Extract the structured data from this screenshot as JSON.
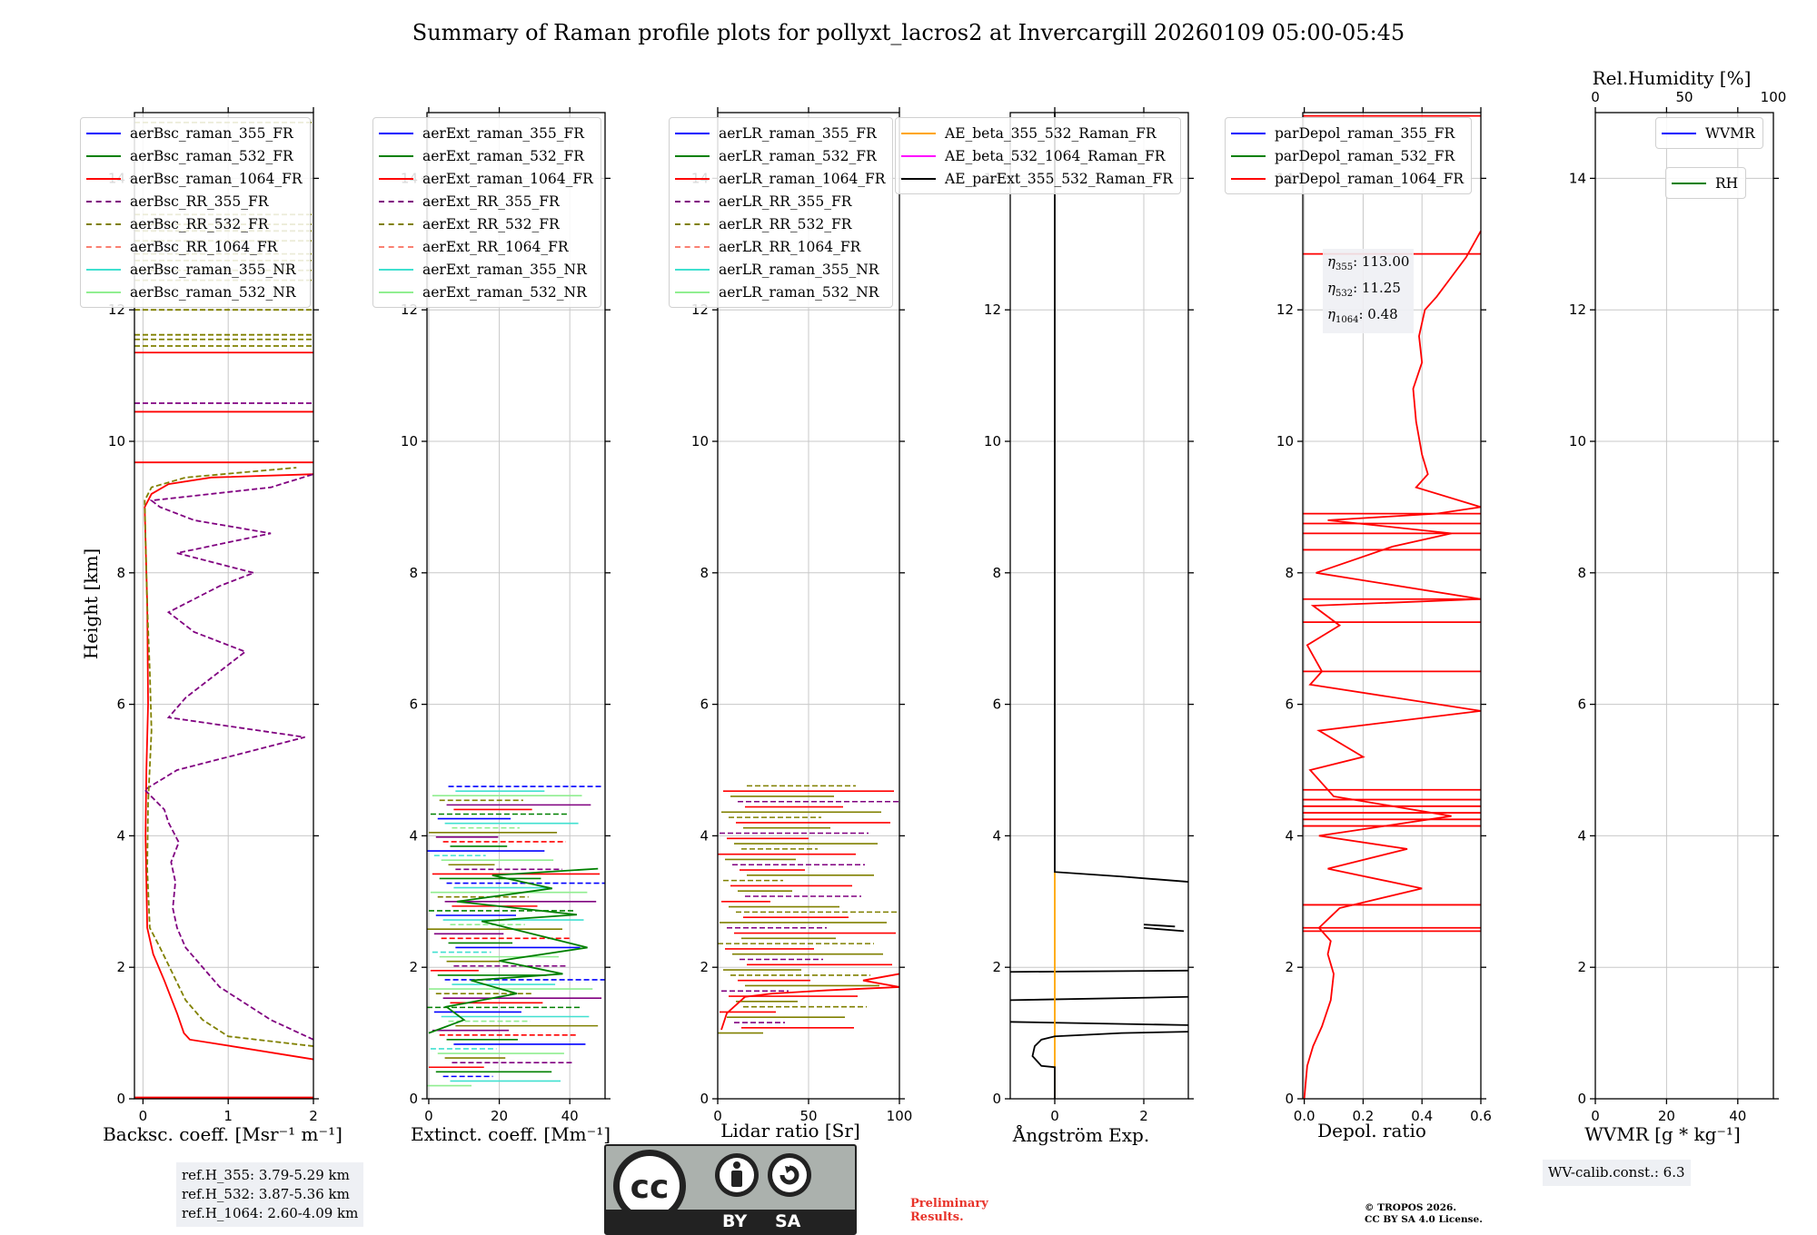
{
  "title": "Summary of Raman profile plots for pollyxt_lacros2 at Invercargill 20260109 05:00-05:45",
  "ylabel": "Height [km]",
  "colors": {
    "blue": "#0000ff",
    "green": "#008000",
    "red": "#ff0000",
    "purple": "#800080",
    "olive": "#808000",
    "salmon": "#fa8072",
    "cyan": "#40e0d0",
    "lightgreen": "#90ee90",
    "orange": "#ffa500",
    "magenta": "#ff00ff",
    "black": "#000000",
    "grid": "#c8c8c8"
  },
  "chart_data": [
    {
      "id": "bsc",
      "type": "line",
      "xlabel": "Backsc. coeff. [Msr⁻¹ m⁻¹]",
      "xlim": [
        -0.1,
        2
      ],
      "ylim": [
        0,
        15
      ],
      "xticks": [
        0,
        1,
        2
      ],
      "xtick_labels": [
        "0",
        "1",
        "2"
      ],
      "yticks": [
        0,
        2,
        4,
        6,
        8,
        10,
        12,
        14
      ],
      "legend": [
        {
          "label": "aerBsc_raman_355_FR",
          "color": "blue",
          "dash": false
        },
        {
          "label": "aerBsc_raman_532_FR",
          "color": "green",
          "dash": false
        },
        {
          "label": "aerBsc_raman_1064_FR",
          "color": "red",
          "dash": false
        },
        {
          "label": "aerBsc_RR_355_FR",
          "color": "purple",
          "dash": true
        },
        {
          "label": "aerBsc_RR_532_FR",
          "color": "olive",
          "dash": true
        },
        {
          "label": "aerBsc_RR_1064_FR",
          "color": "salmon",
          "dash": true
        },
        {
          "label": "aerBsc_raman_355_NR",
          "color": "cyan",
          "dash": false
        },
        {
          "label": "aerBsc_raman_532_NR",
          "color": "lightgreen",
          "dash": false
        }
      ],
      "series": [
        {
          "name": "aerBsc_raman_1064_FR",
          "color": "red",
          "dash": false,
          "x": [
            2.0,
            0.8,
            0.55,
            0.48,
            0.4,
            0.25,
            0.12,
            0.05,
            0.03,
            0.04,
            0.06,
            0.05,
            0.03,
            0.02,
            0.1,
            0.3,
            0.8,
            2.0
          ],
          "y": [
            0.6,
            0.85,
            0.9,
            1.0,
            1.3,
            1.8,
            2.2,
            2.6,
            4.0,
            5.0,
            6.0,
            7.5,
            8.5,
            9.0,
            9.2,
            9.35,
            9.45,
            9.5
          ]
        },
        {
          "name": "aerBsc_RR_355_FR",
          "color": "purple",
          "dash": true,
          "x": [
            2.0,
            1.5,
            0.9,
            0.5,
            0.4,
            0.35,
            0.38,
            0.33,
            0.42,
            0.3,
            0.25,
            0.02,
            0.4,
            1.9,
            0.3,
            0.5,
            0.8,
            1.2,
            0.6,
            0.3,
            0.9,
            1.3,
            0.4,
            1.5,
            0.6,
            0.2,
            0.1,
            1.5,
            2.0
          ],
          "y": [
            0.9,
            1.2,
            1.7,
            2.3,
            2.6,
            2.9,
            3.3,
            3.6,
            3.9,
            4.2,
            4.4,
            4.7,
            5.0,
            5.5,
            5.8,
            6.1,
            6.4,
            6.8,
            7.1,
            7.4,
            7.8,
            8.0,
            8.3,
            8.6,
            8.8,
            9.0,
            9.1,
            9.3,
            9.5
          ]
        },
        {
          "name": "aerBsc_RR_532_FR",
          "color": "olive",
          "dash": true,
          "x": [
            2.0,
            1.0,
            0.7,
            0.5,
            0.35,
            0.2,
            0.08,
            0.05,
            0.06,
            0.1,
            0.08,
            0.05,
            0.03,
            0.02,
            0.1,
            0.5,
            1.8
          ],
          "y": [
            0.8,
            0.95,
            1.2,
            1.5,
            1.9,
            2.3,
            2.6,
            3.5,
            4.5,
            5.6,
            6.5,
            7.5,
            8.5,
            9.1,
            9.3,
            9.45,
            9.6
          ]
        },
        {
          "name": "aerBsc_raman_355_NR",
          "color": "cyan",
          "dash": false,
          "x": [],
          "y": []
        }
      ],
      "hlines": [
        {
          "y": 0.02,
          "color": "red",
          "dash": false
        },
        {
          "y": 9.68,
          "color": "red",
          "dash": false
        },
        {
          "y": 10.45,
          "color": "red",
          "dash": false
        },
        {
          "y": 10.58,
          "color": "purple",
          "dash": true
        },
        {
          "y": 11.35,
          "color": "red",
          "dash": false
        },
        {
          "y": 11.45,
          "color": "olive",
          "dash": true
        },
        {
          "y": 11.55,
          "color": "olive",
          "dash": true
        },
        {
          "y": 11.62,
          "color": "olive",
          "dash": true
        },
        {
          "y": 12.0,
          "color": "olive",
          "dash": true
        },
        {
          "y": 12.45,
          "color": "olive",
          "dash": true
        },
        {
          "y": 12.6,
          "color": "olive",
          "dash": true
        },
        {
          "y": 12.75,
          "color": "olive",
          "dash": true
        },
        {
          "y": 12.85,
          "color": "olive",
          "dash": true
        },
        {
          "y": 13.05,
          "color": "olive",
          "dash": true
        },
        {
          "y": 13.2,
          "color": "olive",
          "dash": true
        },
        {
          "y": 13.3,
          "color": "olive",
          "dash": true
        },
        {
          "y": 13.45,
          "color": "olive",
          "dash": true
        },
        {
          "y": 14.85,
          "color": "olive",
          "dash": true
        }
      ]
    },
    {
      "id": "ext",
      "type": "line",
      "xlabel": "Extinct. coeff. [Mm⁻¹]",
      "xlim": [
        -0.5,
        50
      ],
      "ylim": [
        0,
        15
      ],
      "xticks": [
        0,
        20,
        40
      ],
      "xtick_labels": [
        "0",
        "20",
        "40"
      ],
      "yticks": [
        0,
        2,
        4,
        6,
        8,
        10,
        12,
        14
      ],
      "legend": [
        {
          "label": "aerExt_raman_355_FR",
          "color": "blue",
          "dash": false
        },
        {
          "label": "aerExt_raman_532_FR",
          "color": "green",
          "dash": false
        },
        {
          "label": "aerExt_raman_1064_FR",
          "color": "red",
          "dash": false
        },
        {
          "label": "aerExt_RR_355_FR",
          "color": "purple",
          "dash": true
        },
        {
          "label": "aerExt_RR_532_FR",
          "color": "olive",
          "dash": true
        },
        {
          "label": "aerExt_RR_1064_FR",
          "color": "salmon",
          "dash": true
        },
        {
          "label": "aerExt_raman_355_NR",
          "color": "cyan",
          "dash": false
        },
        {
          "label": "aerExt_raman_532_NR",
          "color": "lightgreen",
          "dash": false
        }
      ],
      "series": [
        {
          "name": "aerExt_raman_532_FR",
          "color": "green",
          "dash": false,
          "x": [
            0,
            10,
            5,
            25,
            12,
            38,
            20,
            45,
            30,
            15,
            42,
            8,
            35,
            18,
            48
          ],
          "y": [
            1.0,
            1.2,
            1.4,
            1.6,
            1.8,
            1.9,
            2.1,
            2.3,
            2.5,
            2.7,
            2.8,
            3.0,
            3.2,
            3.4,
            3.5
          ]
        }
      ],
      "hband": {
        "y_min": 0.2,
        "y_max": 4.8,
        "step": 0.07,
        "colors": [
          "lightgreen",
          "cyan",
          "blue",
          "green",
          "red",
          "purple",
          "olive"
        ]
      }
    },
    {
      "id": "lr",
      "type": "line",
      "xlabel": "Lidar ratio [Sr]",
      "xlim": [
        0,
        100
      ],
      "ylim": [
        0,
        15
      ],
      "xticks": [
        0,
        50,
        100
      ],
      "xtick_labels": [
        "0",
        "50",
        "100"
      ],
      "yticks": [
        0,
        2,
        4,
        6,
        8,
        10,
        12,
        14
      ],
      "legend": [
        {
          "label": "aerLR_raman_355_FR",
          "color": "blue",
          "dash": false
        },
        {
          "label": "aerLR_raman_532_FR",
          "color": "green",
          "dash": false
        },
        {
          "label": "aerLR_raman_1064_FR",
          "color": "red",
          "dash": false
        },
        {
          "label": "aerLR_RR_355_FR",
          "color": "purple",
          "dash": true
        },
        {
          "label": "aerLR_RR_532_FR",
          "color": "olive",
          "dash": true
        },
        {
          "label": "aerLR_RR_1064_FR",
          "color": "salmon",
          "dash": true
        },
        {
          "label": "aerLR_raman_355_NR",
          "color": "cyan",
          "dash": false
        },
        {
          "label": "aerLR_raman_532_NR",
          "color": "lightgreen",
          "dash": false
        }
      ],
      "series": [
        {
          "name": "aerLR_raman_1064_FR",
          "color": "red",
          "dash": false,
          "x": [
            2,
            5,
            15,
            30,
            60,
            100,
            80,
            100
          ],
          "y": [
            1.05,
            1.3,
            1.55,
            1.6,
            1.65,
            1.7,
            1.8,
            1.9
          ]
        }
      ],
      "hband": {
        "y_min": 1.0,
        "y_max": 4.8,
        "step": 0.08,
        "colors": [
          "olive",
          "red",
          "purple",
          "olive",
          "red",
          "olive"
        ]
      }
    },
    {
      "id": "ae",
      "type": "line",
      "xlabel": "Ångström Exp.",
      "xlim": [
        -1,
        3
      ],
      "ylim": [
        0,
        15
      ],
      "xticks": [
        0,
        2
      ],
      "xtick_labels": [
        "0",
        "2"
      ],
      "yticks": [
        0,
        2,
        4,
        6,
        8,
        10,
        12,
        14
      ],
      "legend": [
        {
          "label": "AE_beta_355_532_Raman_FR",
          "color": "orange",
          "dash": false
        },
        {
          "label": "AE_beta_532_1064_Raman_FR",
          "color": "magenta",
          "dash": false
        },
        {
          "label": "AE_parExt_355_532_Raman_FR",
          "color": "black",
          "dash": false
        }
      ],
      "series": [
        {
          "name": "AE_beta_355_532_Raman_FR",
          "color": "orange",
          "dash": false,
          "x": [
            0,
            0
          ],
          "y": [
            0,
            3.45
          ]
        },
        {
          "name": "AE_parExt_355_532_Raman_FR",
          "color": "black",
          "dash": false,
          "x": [
            0,
            0,
            -0.3,
            -0.5,
            -0.45,
            -0.3,
            0,
            1.5,
            3.0
          ],
          "y": [
            0,
            0.48,
            0.5,
            0.65,
            0.8,
            0.9,
            0.95,
            1.0,
            1.02
          ]
        },
        {
          "name": "AE_parExt_355_532_Raman_FR_upper",
          "color": "black",
          "dash": false,
          "x": [
            0,
            0,
            1.5,
            3.0
          ],
          "y": [
            15,
            3.45,
            3.38,
            3.3
          ]
        }
      ],
      "segments": [
        {
          "x1": -1,
          "y1": 1.17,
          "x2": 3,
          "y2": 1.12
        },
        {
          "x1": -1,
          "y1": 1.5,
          "x2": 3,
          "y2": 1.55
        },
        {
          "x1": -1,
          "y1": 1.93,
          "x2": 3,
          "y2": 1.95
        },
        {
          "x1": 2.0,
          "y1": 2.6,
          "x2": 2.9,
          "y2": 2.55
        },
        {
          "x1": 2.0,
          "y1": 2.65,
          "x2": 2.7,
          "y2": 2.62
        }
      ]
    },
    {
      "id": "depol",
      "type": "line",
      "xlabel": "Depol. ratio",
      "xlim": [
        -0.005,
        0.6
      ],
      "ylim": [
        0,
        15
      ],
      "xticks": [
        0,
        0.2,
        0.4,
        0.6
      ],
      "xtick_labels": [
        "0.0",
        "0.2",
        "0.4",
        "0.6"
      ],
      "yticks": [
        0,
        2,
        4,
        6,
        8,
        10,
        12,
        14
      ],
      "legend": [
        {
          "label": "parDepol_raman_355_FR",
          "color": "blue",
          "dash": false
        },
        {
          "label": "parDepol_raman_532_FR",
          "color": "green",
          "dash": false
        },
        {
          "label": "parDepol_raman_1064_FR",
          "color": "red",
          "dash": false
        }
      ],
      "series": [
        {
          "name": "parDepol_raman_1064_FR",
          "color": "red",
          "dash": false,
          "x": [
            0.0,
            0.01,
            0.03,
            0.06,
            0.09,
            0.1,
            0.08,
            0.09,
            0.05,
            0.12,
            0.4,
            0.08,
            0.35,
            0.05,
            0.5,
            0.1,
            0.02,
            0.2,
            0.05,
            0.6,
            0.02,
            0.06,
            0.01,
            0.12,
            0.03,
            0.6,
            0.04,
            0.3,
            0.5,
            0.08,
            0.45,
            0.6,
            0.38,
            0.42,
            0.4,
            0.38,
            0.37,
            0.4,
            0.39,
            0.41,
            0.45,
            0.5,
            0.55,
            0.6
          ],
          "y": [
            0.0,
            0.5,
            0.8,
            1.1,
            1.5,
            1.9,
            2.2,
            2.4,
            2.6,
            2.9,
            3.2,
            3.5,
            3.8,
            4.0,
            4.3,
            4.6,
            5.0,
            5.2,
            5.6,
            5.9,
            6.3,
            6.5,
            6.9,
            7.2,
            7.5,
            7.6,
            8.0,
            8.4,
            8.6,
            8.8,
            8.9,
            9.0,
            9.3,
            9.5,
            9.8,
            10.3,
            10.8,
            11.2,
            11.6,
            12.0,
            12.2,
            12.5,
            12.8,
            13.2
          ]
        }
      ],
      "hlines": [
        {
          "y": 2.55,
          "color": "red",
          "dash": false
        },
        {
          "y": 2.6,
          "color": "red",
          "dash": false
        },
        {
          "y": 2.95,
          "color": "red",
          "dash": false
        },
        {
          "y": 4.15,
          "color": "red",
          "dash": false
        },
        {
          "y": 4.25,
          "color": "red",
          "dash": false
        },
        {
          "y": 4.35,
          "color": "red",
          "dash": false
        },
        {
          "y": 4.45,
          "color": "red",
          "dash": false
        },
        {
          "y": 4.55,
          "color": "red",
          "dash": false
        },
        {
          "y": 4.7,
          "color": "red",
          "dash": false
        },
        {
          "y": 6.5,
          "color": "red",
          "dash": false
        },
        {
          "y": 7.25,
          "color": "red",
          "dash": false
        },
        {
          "y": 7.6,
          "color": "red",
          "dash": false
        },
        {
          "y": 8.35,
          "color": "red",
          "dash": false
        },
        {
          "y": 8.6,
          "color": "red",
          "dash": false
        },
        {
          "y": 8.75,
          "color": "red",
          "dash": false
        },
        {
          "y": 8.9,
          "color": "red",
          "dash": false
        },
        {
          "y": 12.85,
          "color": "red",
          "dash": false
        },
        {
          "y": 14.95,
          "color": "red",
          "dash": false
        }
      ],
      "annotation": [
        {
          "sym": "η",
          "sub": "355",
          "value": ": 113.00"
        },
        {
          "sym": "η",
          "sub": "532",
          "value": ": 11.25"
        },
        {
          "sym": "η",
          "sub": "1064",
          "value": ": 0.48"
        }
      ]
    },
    {
      "id": "wv",
      "type": "line",
      "xlabel": "WVMR [g * kg⁻¹]",
      "xlim": [
        0,
        50
      ],
      "ylim": [
        0,
        15
      ],
      "xticks": [
        0,
        20,
        40
      ],
      "xtick_labels": [
        "0",
        "20",
        "40"
      ],
      "yticks": [
        0,
        2,
        4,
        6,
        8,
        10,
        12,
        14
      ],
      "top_axis": {
        "label": "Rel.Humidity [%]",
        "xlim": [
          0,
          100
        ],
        "xticks": [
          0,
          50,
          100
        ],
        "xtick_labels": [
          "0",
          "50",
          "100"
        ]
      },
      "legend": [
        {
          "label": "WVMR",
          "color": "blue",
          "dash": false
        }
      ],
      "legend2": [
        {
          "label": "RH",
          "color": "green",
          "dash": false
        }
      ],
      "series": []
    }
  ],
  "info": {
    "refh": [
      "ref.H_355: 3.79-5.29 km",
      "ref.H_532: 3.87-5.36 km",
      "ref.H_1064: 2.60-4.09 km"
    ],
    "wv_calib": "WV-calib.const.: 6.3",
    "preliminary": [
      "Preliminary",
      "Results."
    ],
    "copyright": [
      "© TROPOS 2026.",
      "CC BY SA 4.0 License."
    ],
    "license_badge": {
      "by": "BY",
      "sa": "SA"
    }
  }
}
